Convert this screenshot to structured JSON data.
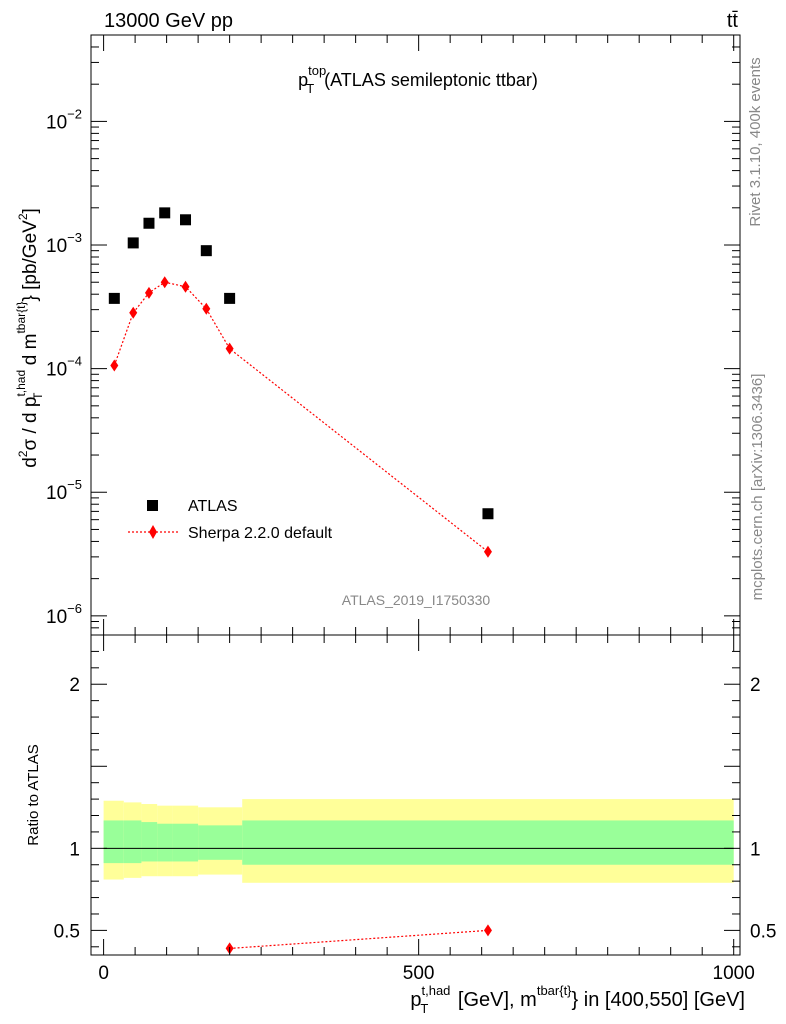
{
  "header": {
    "energy": "13000 GeV pp",
    "process": "tt̄",
    "side_top": "Rivet 3.1.10,  400k events",
    "side_bottom": "mcplots.cern.ch [arXiv:1306.3436]",
    "analysis_id": "ATLAS_2019_I1750330"
  },
  "colors": {
    "data": "#000000",
    "mc": "#ff0000",
    "band_inner": "#99ff99",
    "band_outer": "#ffff99"
  },
  "chart_data": [
    {
      "type": "scatter",
      "title": "p_T^{top} (ATLAS semileptonic ttbar)",
      "title_main": "p",
      "title_sub": "T",
      "title_sup": "top",
      "title_rest": "(ATLAS semileptonic ttbar)",
      "ylabel": "d²σ / d p_T^{t,had} d m^{tbar{t}} [pb/GeV²]",
      "yscale": "log",
      "ylim": [
        7e-07,
        0.05
      ],
      "xlim": [
        -20,
        1010
      ],
      "y_ticks": [
        {
          "v": 1e-06,
          "label": "10",
          "exp": "−6"
        },
        {
          "v": 1e-05,
          "label": "10",
          "exp": "−5"
        },
        {
          "v": 0.0001,
          "label": "10",
          "exp": "−4"
        },
        {
          "v": 0.001,
          "label": "10",
          "exp": "−3"
        },
        {
          "v": 0.01,
          "label": "10",
          "exp": "−2"
        }
      ],
      "legend_position": "middle-left",
      "series": [
        {
          "name": "ATLAS",
          "marker": "square",
          "x": [
            17,
            47,
            72,
            97,
            130,
            163,
            200,
            610
          ],
          "y": [
            0.00037,
            0.00104,
            0.0015,
            0.00182,
            0.0016,
            0.0009,
            0.00037,
            6.7e-06
          ]
        },
        {
          "name": "Sherpa 2.2.0 default",
          "marker": "diamond",
          "line": "dotted",
          "x": [
            17,
            47,
            72,
            97,
            130,
            163,
            200,
            610
          ],
          "y": [
            0.000106,
            0.000283,
            0.00041,
            0.0005,
            0.00046,
            0.000305,
            0.000145,
            3.3e-06
          ]
        }
      ]
    },
    {
      "type": "line",
      "ylabel": "Ratio to ATLAS",
      "ylim": [
        0.35,
        2.3
      ],
      "xlim": [
        -20,
        1010
      ],
      "y_ticks": [
        0.5,
        1,
        2
      ],
      "x_ticks": [
        0,
        500,
        1000
      ],
      "xlabel": "p_T^{t,had} [GeV], m^{tbar{t}} in [400,550] [GeV]",
      "reference": 1,
      "bands": [
        {
          "x0": 0,
          "x1": 32,
          "inner": [
            0.91,
            1.17
          ],
          "outer": [
            0.81,
            1.29
          ]
        },
        {
          "x0": 32,
          "x1": 60,
          "inner": [
            0.91,
            1.17
          ],
          "outer": [
            0.82,
            1.28
          ]
        },
        {
          "x0": 60,
          "x1": 85,
          "inner": [
            0.92,
            1.16
          ],
          "outer": [
            0.83,
            1.27
          ]
        },
        {
          "x0": 85,
          "x1": 110,
          "inner": [
            0.92,
            1.15
          ],
          "outer": [
            0.83,
            1.26
          ]
        },
        {
          "x0": 110,
          "x1": 150,
          "inner": [
            0.92,
            1.15
          ],
          "outer": [
            0.83,
            1.26
          ]
        },
        {
          "x0": 150,
          "x1": 220,
          "inner": [
            0.93,
            1.14
          ],
          "outer": [
            0.84,
            1.25
          ]
        },
        {
          "x0": 220,
          "x1": 1000,
          "inner": [
            0.9,
            1.17
          ],
          "outer": [
            0.79,
            1.3
          ]
        }
      ],
      "series": [
        {
          "name": "Sherpa 2.2.0 default",
          "x": [
            200,
            610
          ],
          "y": [
            0.39,
            0.5
          ]
        }
      ]
    }
  ]
}
